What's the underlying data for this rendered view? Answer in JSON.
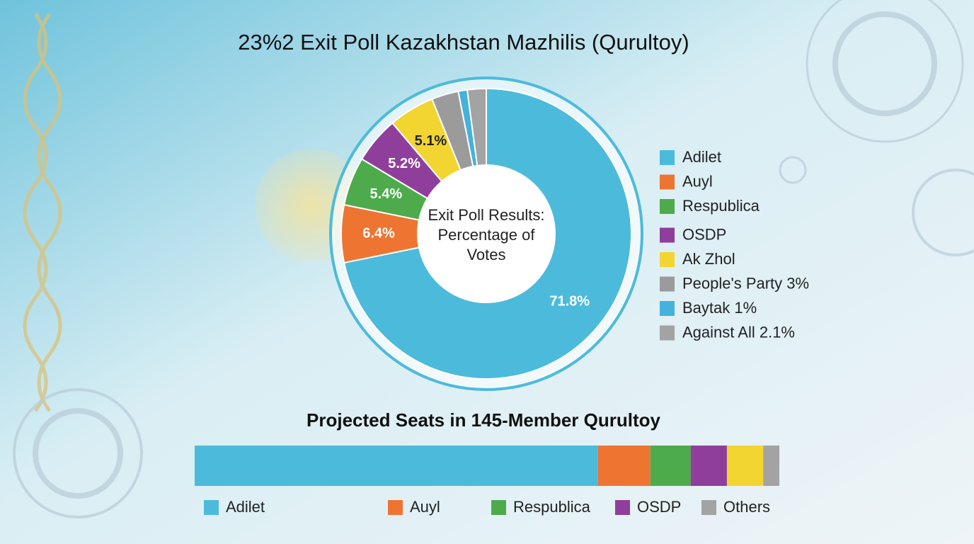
{
  "chart_data": [
    {
      "type": "pie",
      "title": "23%2 Exit Poll Kazakhstan Mazhilis (Qurultoy)",
      "center_label": "Exit Poll Results: Percentage of Votes",
      "categories": [
        "Adilet",
        "Auyl",
        "Respublica",
        "OSDP",
        "Ak Zhol",
        "People's Party 3%",
        "Baytak 1%",
        "Against All 2.1%"
      ],
      "values": [
        71.8,
        6.4,
        5.4,
        5.2,
        5.1,
        3,
        1,
        2.1
      ],
      "value_labels": [
        "71.8%",
        "6.4%",
        "5.4%",
        "5.2%",
        "5.1%",
        null,
        null,
        null
      ],
      "colors": [
        "#4cbbdb",
        "#ee7431",
        "#4eab4c",
        "#8f3f9b",
        "#f3d532",
        "#9b9b9b",
        "#44b2db",
        "#a3a3a3"
      ],
      "legend": "right"
    },
    {
      "type": "stacked_bar",
      "title": "Projected Seats in 145-Member Qurultoy",
      "series": [
        {
          "name": "Adilet",
          "color": "#4cbbdb",
          "values": [
            100
          ]
        },
        {
          "name": "Auyl",
          "color": "#ee7431",
          "values": [
            13
          ]
        },
        {
          "name": "Respublica",
          "color": "#4eab4c",
          "values": [
            10
          ]
        },
        {
          "name": "OSDP",
          "color": "#8f3f9b",
          "values": [
            9
          ]
        },
        {
          "name": null,
          "color": "#f3d532",
          "values": [
            9
          ]
        },
        {
          "name": "Others",
          "color": "#a3a3a3",
          "values": [
            4
          ]
        }
      ],
      "legend": "bottom"
    }
  ]
}
